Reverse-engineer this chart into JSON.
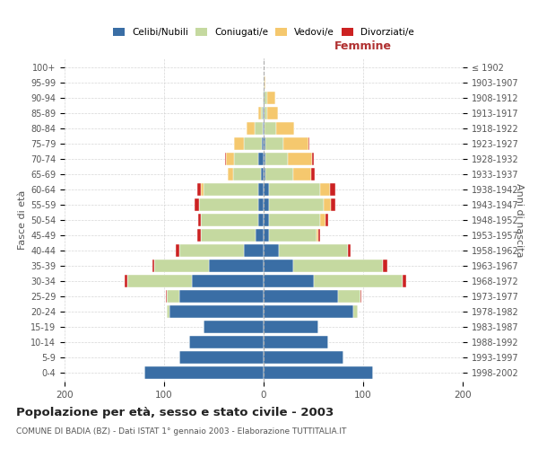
{
  "age_groups": [
    "0-4",
    "5-9",
    "10-14",
    "15-19",
    "20-24",
    "25-29",
    "30-34",
    "35-39",
    "40-44",
    "45-49",
    "50-54",
    "55-59",
    "60-64",
    "65-69",
    "70-74",
    "75-79",
    "80-84",
    "85-89",
    "90-94",
    "95-99",
    "100+"
  ],
  "birth_years": [
    "1998-2002",
    "1993-1997",
    "1988-1992",
    "1983-1987",
    "1978-1982",
    "1973-1977",
    "1968-1972",
    "1963-1967",
    "1958-1962",
    "1953-1957",
    "1948-1952",
    "1943-1947",
    "1938-1942",
    "1933-1937",
    "1928-1932",
    "1923-1927",
    "1918-1922",
    "1913-1917",
    "1908-1912",
    "1903-1907",
    "≤ 1902"
  ],
  "males": {
    "celibi": [
      120,
      85,
      75,
      60,
      95,
      85,
      72,
      55,
      20,
      8,
      5,
      5,
      5,
      3,
      5,
      2,
      1,
      1,
      0,
      0,
      0
    ],
    "coniugati": [
      0,
      0,
      0,
      0,
      2,
      12,
      65,
      55,
      65,
      55,
      58,
      60,
      55,
      28,
      25,
      18,
      8,
      2,
      1,
      0,
      0
    ],
    "vedovi": [
      0,
      0,
      0,
      0,
      0,
      0,
      0,
      0,
      0,
      0,
      0,
      0,
      3,
      5,
      8,
      10,
      8,
      2,
      0,
      0,
      0
    ],
    "divorziati": [
      0,
      0,
      0,
      0,
      0,
      1,
      3,
      2,
      3,
      4,
      3,
      4,
      4,
      0,
      1,
      0,
      0,
      0,
      0,
      0,
      0
    ]
  },
  "females": {
    "nubili": [
      110,
      80,
      65,
      55,
      90,
      75,
      50,
      30,
      15,
      5,
      5,
      5,
      5,
      2,
      2,
      2,
      1,
      1,
      1,
      0,
      0
    ],
    "coniugate": [
      0,
      0,
      0,
      0,
      5,
      22,
      90,
      90,
      70,
      48,
      52,
      55,
      52,
      28,
      22,
      18,
      12,
      3,
      3,
      1,
      0
    ],
    "vedove": [
      0,
      0,
      0,
      0,
      0,
      0,
      0,
      0,
      0,
      2,
      5,
      8,
      10,
      18,
      25,
      25,
      18,
      10,
      8,
      1,
      0
    ],
    "divorziate": [
      0,
      0,
      0,
      0,
      0,
      1,
      3,
      4,
      2,
      2,
      3,
      4,
      5,
      3,
      1,
      1,
      0,
      0,
      0,
      0,
      0
    ]
  },
  "colors": {
    "celibi": "#3A6EA5",
    "coniugati": "#C5D9A0",
    "vedovi": "#F5C86E",
    "divorziati": "#CC2222"
  },
  "title": "Popolazione per età, sesso e stato civile - 2003",
  "subtitle": "COMUNE DI BADIA (BZ) - Dati ISTAT 1° gennaio 2003 - Elaborazione TUTTITALIA.IT",
  "ylabel_left": "Fasce di età",
  "ylabel_right": "Anni di nascita",
  "xlabel_right": "Femmine",
  "xlim": 200,
  "bg_color": "#ffffff",
  "grid_color": "#cccccc",
  "bar_height": 0.82
}
